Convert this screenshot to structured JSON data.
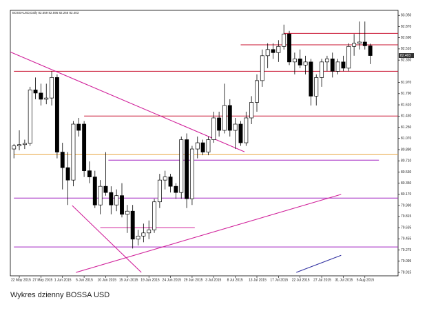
{
  "chart_data": {
    "type": "candlestick",
    "title": "BOSSAUSD,Daily  82.559 82.595 82.266 82.403",
    "caption": "Wykres dzienny BOSSA USD",
    "up_color": "#ffffff",
    "down_color": "#000000",
    "outline_color": "#000000",
    "categories": [
      null,
      "22 May 2015",
      null,
      null,
      null,
      "27 May 2015",
      null,
      null,
      null,
      "1 Jun 2015",
      null,
      null,
      null,
      "5 Jun 2015",
      null,
      null,
      null,
      "10 Jun 2015",
      null,
      null,
      null,
      "15 Jun 2015",
      null,
      null,
      null,
      "19 Jun 2015",
      null,
      null,
      null,
      "24 Jun 2015",
      null,
      null,
      null,
      "29 Jun 2015",
      null,
      null,
      null,
      "3 Jul 2015",
      null,
      null,
      null,
      "8 Jul 2015",
      null,
      null,
      null,
      "13 Jul 2015",
      null,
      null,
      null,
      "17 Jul 2015",
      null,
      null,
      null,
      "22 Jul 2015",
      null,
      null,
      null,
      "27 Jul 2015",
      null,
      null,
      null,
      "31 Jul 2015",
      null,
      null,
      null,
      "5 Aug 2015",
      null
    ],
    "open": [
      80.9,
      80.95,
      80.97,
      80.99,
      81.85,
      81.8,
      81.7,
      81.72,
      82.05,
      80.85,
      80.6,
      80.4,
      81.3,
      81.3,
      80.55,
      80.45,
      80.0,
      80.3,
      80.2,
      80.0,
      80.15,
      79.85,
      79.9,
      79.45,
      79.5,
      79.55,
      79.6,
      80.05,
      80.4,
      80.45,
      80.3,
      80.2,
      81.05,
      80.1,
      80.9,
      81.0,
      80.85,
      81.05,
      81.4,
      81.2,
      81.6,
      81.2,
      81.3,
      81.0,
      81.4,
      81.65,
      82.0,
      82.4,
      82.5,
      82.45,
      82.55,
      82.75,
      82.3,
      82.35,
      82.25,
      82.3,
      81.75,
      82.05,
      82.3,
      82.35,
      82.15,
      82.3,
      82.2,
      82.55,
      82.6,
      82.62,
      82.559
    ],
    "high": [
      80.98,
      81.2,
      81.05,
      81.9,
      82.05,
      81.95,
      81.95,
      82.15,
      82.1,
      81.0,
      80.85,
      81.35,
      81.4,
      81.35,
      80.7,
      80.55,
      80.4,
      80.85,
      80.3,
      80.25,
      80.35,
      80.0,
      80.0,
      79.6,
      79.7,
      79.75,
      80.1,
      80.5,
      80.55,
      80.5,
      80.35,
      81.1,
      81.15,
      80.95,
      81.1,
      81.05,
      81.1,
      81.5,
      81.5,
      81.95,
      81.7,
      81.4,
      81.35,
      81.5,
      81.75,
      82.1,
      82.5,
      82.6,
      82.6,
      82.65,
      82.9,
      82.8,
      82.45,
      82.5,
      82.4,
      82.35,
      82.1,
      82.35,
      82.4,
      82.45,
      82.35,
      82.4,
      82.6,
      82.75,
      82.95,
      82.95,
      82.595
    ],
    "low": [
      80.75,
      80.88,
      80.9,
      80.95,
      81.7,
      81.6,
      81.62,
      81.6,
      80.75,
      80.25,
      80.0,
      80.3,
      81.1,
      80.45,
      80.35,
      79.95,
      79.85,
      80.15,
      79.85,
      79.9,
      79.8,
      79.55,
      79.3,
      79.35,
      79.4,
      79.45,
      79.55,
      79.95,
      80.25,
      80.2,
      80.1,
      80.1,
      79.95,
      80.0,
      80.75,
      80.8,
      80.8,
      81.0,
      81.1,
      81.15,
      81.1,
      80.9,
      80.95,
      80.95,
      81.3,
      81.5,
      81.9,
      82.2,
      82.35,
      82.3,
      82.5,
      82.25,
      82.1,
      82.2,
      82.1,
      81.6,
      81.6,
      81.9,
      82.15,
      82.05,
      82.1,
      82.15,
      82.15,
      82.4,
      82.5,
      82.5,
      82.266
    ],
    "close": [
      80.95,
      80.97,
      80.99,
      81.85,
      81.8,
      81.7,
      81.72,
      82.05,
      80.85,
      80.6,
      80.4,
      81.3,
      81.2,
      80.55,
      80.45,
      80.0,
      80.3,
      80.2,
      80.0,
      80.15,
      79.85,
      79.9,
      79.45,
      79.5,
      79.55,
      79.6,
      80.05,
      80.4,
      80.45,
      80.3,
      80.2,
      81.05,
      80.1,
      80.9,
      81.0,
      80.85,
      81.05,
      81.4,
      81.2,
      81.6,
      81.2,
      81.3,
      81.0,
      81.4,
      81.65,
      82.0,
      82.4,
      82.5,
      82.45,
      82.55,
      82.75,
      82.3,
      82.35,
      82.25,
      82.3,
      81.75,
      82.05,
      82.3,
      82.35,
      82.15,
      82.3,
      82.2,
      82.55,
      82.6,
      82.62,
      82.56,
      82.403
    ],
    "last_price": {
      "value": 82.403,
      "label": "82.403"
    },
    "ylim": [
      78.86,
      83.13
    ],
    "yticks": [
      {
        "value": 83.05,
        "label": "83.050"
      },
      {
        "value": 82.87,
        "label": "82.870"
      },
      {
        "value": 82.69,
        "label": "82.690"
      },
      {
        "value": 82.51,
        "label": "82.510"
      },
      {
        "value": 82.33,
        "label": "82.330"
      },
      {
        "value": 81.97,
        "label": "81.970"
      },
      {
        "value": 81.79,
        "label": "81.790"
      },
      {
        "value": 81.61,
        "label": "81.610"
      },
      {
        "value": 81.43,
        "label": "81.430"
      },
      {
        "value": 81.25,
        "label": "81.250"
      },
      {
        "value": 81.07,
        "label": "81.070"
      },
      {
        "value": 80.89,
        "label": "80.890"
      },
      {
        "value": 80.71,
        "label": "80.710"
      },
      {
        "value": 80.53,
        "label": "80.530"
      },
      {
        "value": 80.35,
        "label": "80.350"
      },
      {
        "value": 80.17,
        "label": "80.170"
      },
      {
        "value": 79.99,
        "label": "79.990"
      },
      {
        "value": 79.815,
        "label": "79.815"
      },
      {
        "value": 79.635,
        "label": "79.635"
      },
      {
        "value": 79.455,
        "label": "79.455"
      },
      {
        "value": 79.275,
        "label": "79.275"
      },
      {
        "value": 79.095,
        "label": "79.095"
      },
      {
        "value": 78.915,
        "label": "78.915"
      }
    ],
    "levels": [
      {
        "value": 82.76,
        "color": "#c8102e",
        "from": 50
      },
      {
        "value": 82.575,
        "color": "#c8102e",
        "from": 42
      },
      {
        "value": 82.15,
        "color": "#c8102e",
        "from": 0
      },
      {
        "value": 81.43,
        "color": "#c8102e",
        "from": 13
      },
      {
        "value": 80.81,
        "color": "#e8a33c",
        "from": 0
      },
      {
        "value": 80.72,
        "color": "#a020c0",
        "from": 17.5,
        "to": 67.6
      },
      {
        "value": 80.11,
        "color": "#a020c0",
        "from": 0
      },
      {
        "value": 79.635,
        "color": "#d0209a",
        "from": 16,
        "to": 33.5
      },
      {
        "value": 79.325,
        "color": "#a020c0",
        "from": 0
      }
    ],
    "trendlines": [
      {
        "color": "#d0209a",
        "points": [
          [
            -0.66,
            82.46
          ],
          [
            42.7,
            80.855
          ]
        ]
      },
      {
        "color": "#d0209a",
        "points": [
          [
            10.8,
            79.99
          ],
          [
            23.6,
            78.915
          ]
        ]
      },
      {
        "color": "#d0209a",
        "points": [
          [
            11.5,
            78.915
          ],
          [
            60.6,
            80.17
          ]
        ]
      },
      {
        "color": "#3030a0",
        "points": [
          [
            52.3,
            78.915
          ],
          [
            60.6,
            79.19
          ]
        ]
      }
    ]
  }
}
